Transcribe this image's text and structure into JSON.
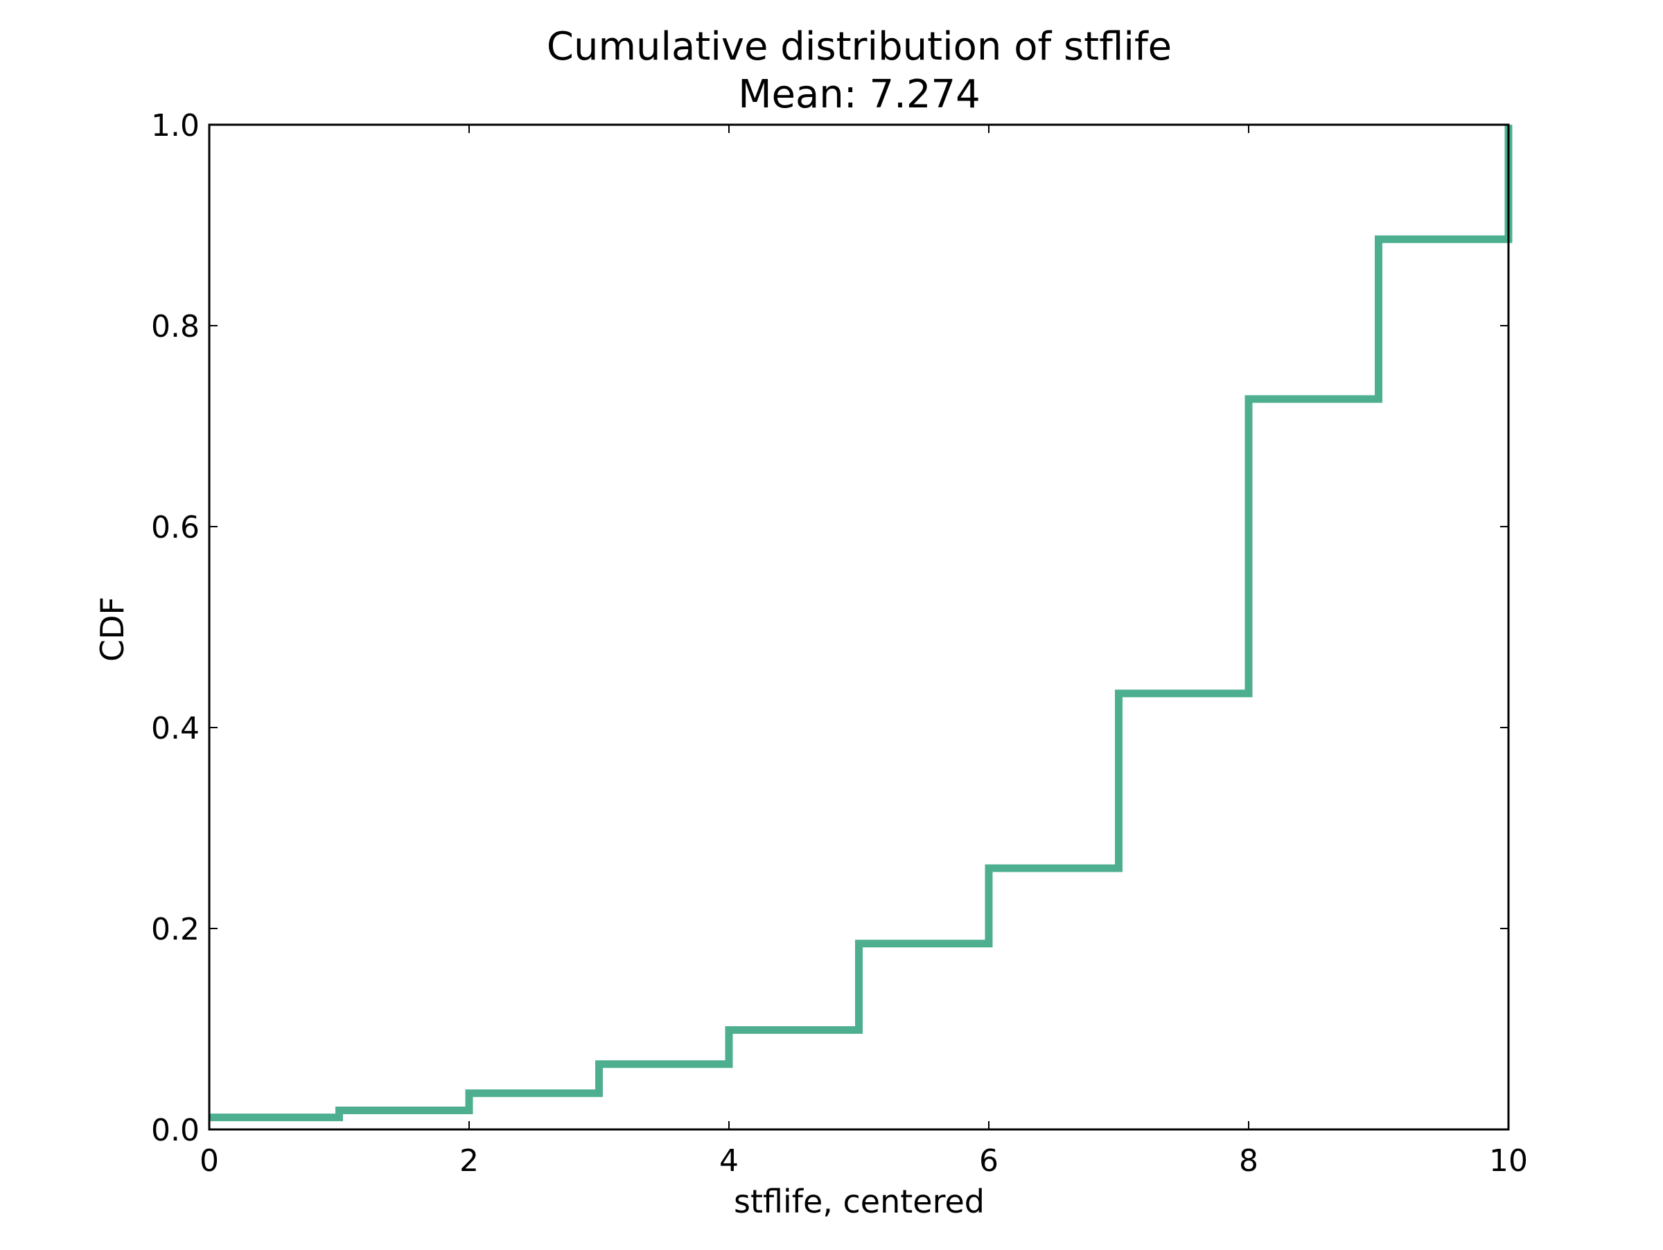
{
  "chart_data": {
    "type": "line",
    "step": "post",
    "title": "Cumulative distribution of stflife",
    "subtitle": "Mean: 7.274",
    "xlabel": "stflife, centered",
    "ylabel": "CDF",
    "xlim": [
      0,
      10
    ],
    "ylim": [
      0,
      1
    ],
    "x_ticks": [
      0,
      2,
      4,
      6,
      8,
      10
    ],
    "y_ticks": [
      0.0,
      0.2,
      0.4,
      0.6,
      0.8,
      1.0
    ],
    "x_tick_labels": [
      "0",
      "2",
      "4",
      "6",
      "8",
      "10"
    ],
    "y_tick_labels": [
      "0.0",
      "0.2",
      "0.4",
      "0.6",
      "0.8",
      "1.0"
    ],
    "grid": false,
    "legend": "none",
    "series": [
      {
        "color": "#4daf8f",
        "x": [
          0,
          1,
          2,
          3,
          4,
          5,
          6,
          7,
          8,
          9,
          10
        ],
        "y": [
          0.012,
          0.019,
          0.036,
          0.065,
          0.099,
          0.185,
          0.26,
          0.434,
          0.727,
          0.886,
          1.0
        ]
      }
    ]
  }
}
